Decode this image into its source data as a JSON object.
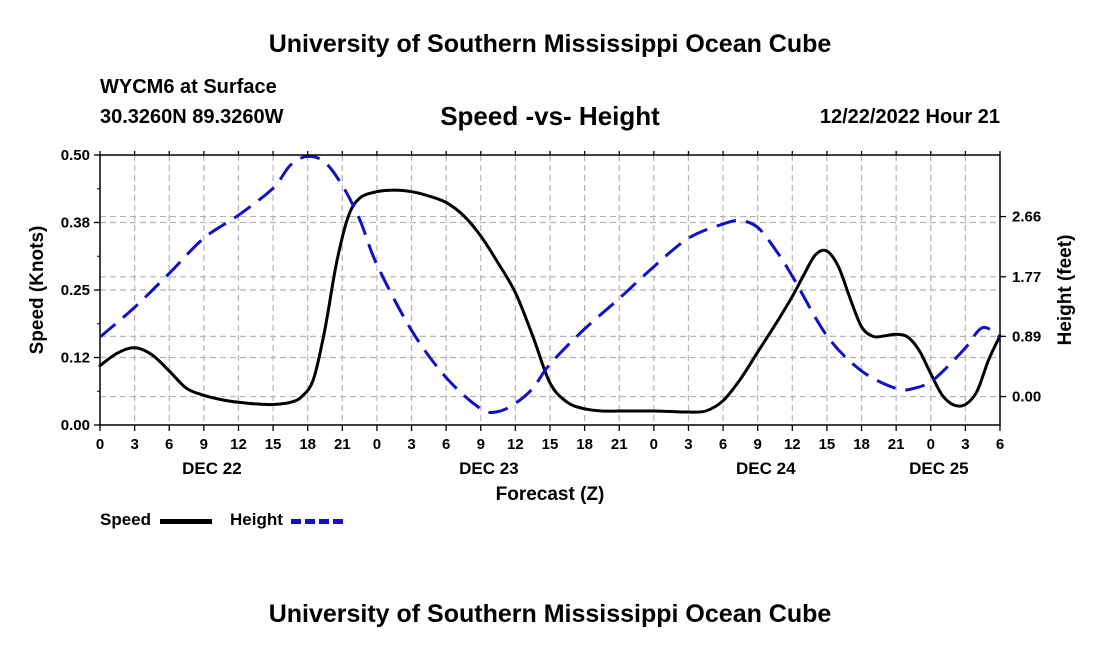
{
  "header": {
    "title": "University of Southern Mississippi Ocean Cube",
    "station": "WYCM6 at Surface",
    "coordinates": "30.3260N  89.3260W",
    "subtitle": "Speed -vs- Height",
    "timestamp": "12/22/2022 Hour 21"
  },
  "footer": {
    "title": "University of Southern Mississippi Ocean Cube"
  },
  "legend": {
    "speed_label": "Speed",
    "height_label": "Height"
  },
  "chart_data": {
    "type": "line",
    "xlabel": "Forecast (Z)",
    "ylabel_left": "Speed (Knots)",
    "ylabel_right": "Height (feet)",
    "x_unit": "hours since 12/22 00Z",
    "xlim": [
      0,
      78
    ],
    "ylim_left": [
      0,
      0.5
    ],
    "ylim_right": [
      -0.42,
      3.57
    ],
    "x_tick_values": [
      0,
      3,
      6,
      9,
      12,
      15,
      18,
      21,
      24,
      27,
      30,
      33,
      36,
      39,
      42,
      45,
      48,
      51,
      54,
      57,
      60,
      63,
      66,
      69,
      72,
      75,
      78
    ],
    "x_tick_labels": [
      "0",
      "3",
      "6",
      "9",
      "12",
      "15",
      "18",
      "21",
      "0",
      "3",
      "6",
      "9",
      "12",
      "15",
      "18",
      "21",
      "0",
      "3",
      "6",
      "9",
      "12",
      "15",
      "18",
      "21",
      "0",
      "3",
      "6"
    ],
    "date_labels": [
      {
        "x": 9.7,
        "label": "DEC 22"
      },
      {
        "x": 33.7,
        "label": "DEC 23"
      },
      {
        "x": 57.7,
        "label": "DEC 24"
      },
      {
        "x": 72.7,
        "label": "DEC 25"
      }
    ],
    "y_left_ticks": [
      0.0,
      0.125,
      0.25,
      0.375,
      0.5
    ],
    "y_left_tick_labels": [
      "0.00",
      "0.12",
      "0.25",
      "0.38",
      "0.50"
    ],
    "y_right_ticks": [
      0.0,
      0.89,
      1.77,
      2.66
    ],
    "y_right_tick_labels": [
      "0.00",
      "0.89",
      "1.77",
      "2.66"
    ],
    "grid": true,
    "series": [
      {
        "name": "Speed",
        "axis": "left",
        "color": "#000000",
        "style": "solid",
        "x": [
          0,
          1.5,
          3,
          4.5,
          6,
          7.5,
          9,
          10.5,
          12,
          13.5,
          15,
          16.5,
          17.5,
          18.5,
          19.5,
          20.5,
          21.5,
          22.5,
          24,
          25.5,
          27,
          28.5,
          30,
          31.5,
          33,
          34.5,
          36,
          37.5,
          39,
          40.5,
          42,
          43.5,
          45,
          46.5,
          48,
          49.5,
          51,
          52.5,
          54,
          55.5,
          57,
          58.5,
          60,
          61,
          62,
          63,
          64,
          65,
          66,
          67,
          68,
          69,
          70,
          71,
          72,
          73,
          74,
          75,
          76,
          77,
          78
        ],
        "values": [
          0.11,
          0.133,
          0.143,
          0.13,
          0.1,
          0.068,
          0.055,
          0.047,
          0.042,
          0.039,
          0.038,
          0.042,
          0.053,
          0.085,
          0.178,
          0.3,
          0.385,
          0.42,
          0.432,
          0.435,
          0.432,
          0.424,
          0.412,
          0.388,
          0.35,
          0.3,
          0.245,
          0.165,
          0.078,
          0.042,
          0.03,
          0.026,
          0.026,
          0.026,
          0.026,
          0.025,
          0.024,
          0.026,
          0.045,
          0.085,
          0.135,
          0.185,
          0.238,
          0.278,
          0.315,
          0.322,
          0.293,
          0.235,
          0.182,
          0.164,
          0.165,
          0.168,
          0.163,
          0.138,
          0.095,
          0.055,
          0.037,
          0.038,
          0.062,
          0.12,
          0.165
        ]
      },
      {
        "name": "Height",
        "axis": "right",
        "color": "#1010c8",
        "style": "dashed",
        "x": [
          0,
          3,
          6,
          9,
          12,
          15,
          16.5,
          18,
          19.5,
          21,
          22.5,
          24,
          27,
          30,
          33,
          34.5,
          36,
          37.5,
          39,
          42,
          45,
          48,
          51,
          54,
          55.5,
          57,
          58.5,
          60,
          63,
          66,
          69,
          70.5,
          72,
          73.5,
          75,
          76.5,
          78
        ],
        "values": [
          0.88,
          1.32,
          1.82,
          2.34,
          2.68,
          3.08,
          3.42,
          3.55,
          3.46,
          3.12,
          2.62,
          1.95,
          0.98,
          0.28,
          -0.18,
          -0.22,
          -0.1,
          0.12,
          0.48,
          1.0,
          1.45,
          1.92,
          2.34,
          2.55,
          2.6,
          2.5,
          2.18,
          1.78,
          0.9,
          0.38,
          0.12,
          0.12,
          0.22,
          0.45,
          0.72,
          1.02,
          0.88
        ]
      }
    ]
  }
}
